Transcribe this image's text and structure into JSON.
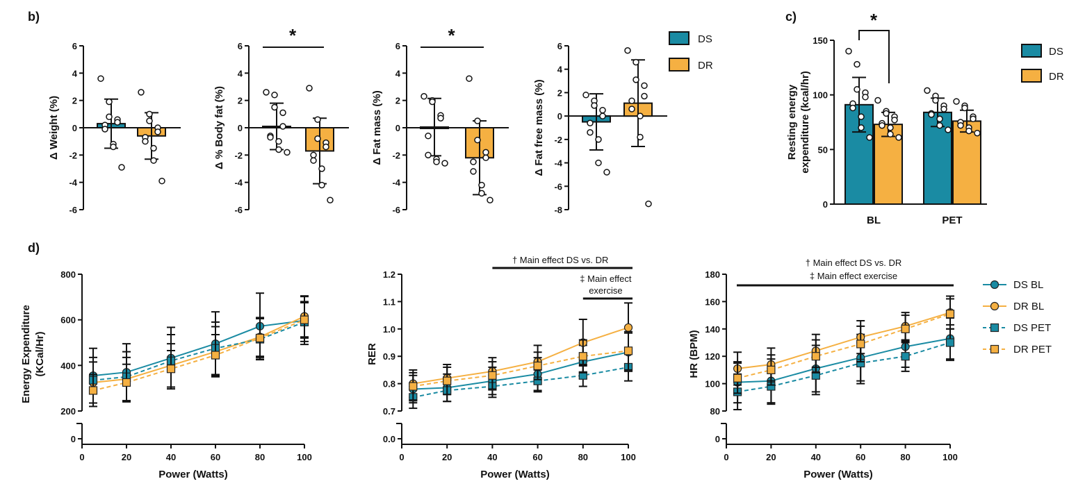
{
  "panels": {
    "b": "b)",
    "c": "c)",
    "d": "d)"
  },
  "colors": {
    "DS": "#1a8ba3",
    "DR": "#f5b042",
    "err": "#111111"
  },
  "chart_data": [
    {
      "id": "b1",
      "type": "bar",
      "title": "",
      "ylabel": "Δ Weight (%)",
      "xlabel": "",
      "ylim": [
        -6,
        6
      ],
      "yticks": [
        "6",
        "4",
        "2",
        "0",
        "-2",
        "-4",
        "-6"
      ],
      "categories": [
        "DS",
        "DR"
      ],
      "values": [
        0.3,
        -0.6
      ],
      "errors": [
        1.8,
        1.7
      ],
      "points": [
        [
          3.6,
          1.9,
          0.8,
          0.6,
          0.4,
          0.2,
          -0.1,
          -1.2,
          -1.4,
          -2.9
        ],
        [
          2.6,
          1.0,
          0.5,
          0.0,
          -0.3,
          -0.7,
          -1.0,
          -1.5,
          -2.4,
          -3.9
        ]
      ]
    },
    {
      "id": "b2",
      "type": "bar",
      "title": "",
      "ylabel": "Δ % Body fat (%)",
      "xlabel": "",
      "ylim": [
        -6,
        6
      ],
      "yticks": [
        "6",
        "4",
        "2",
        "0",
        "-2",
        "-4",
        "-6"
      ],
      "categories": [
        "DS",
        "DR"
      ],
      "values": [
        0.1,
        -1.7
      ],
      "errors": [
        1.7,
        2.4
      ],
      "points": [
        [
          2.6,
          2.4,
          1.5,
          1.1,
          0.1,
          -0.6,
          -0.7,
          -1.0,
          -1.6,
          -1.8
        ],
        [
          2.9,
          0.6,
          -0.8,
          -1.1,
          -1.4,
          -2.0,
          -2.4,
          -3.0,
          -4.2,
          -5.3
        ]
      ],
      "star": "*"
    },
    {
      "id": "b3",
      "type": "bar",
      "title": "",
      "ylabel": "Δ Fat mass (%)",
      "xlabel": "",
      "ylim": [
        -6,
        6
      ],
      "yticks": [
        "6",
        "4",
        "2",
        "0",
        "-2",
        "-4",
        "-6"
      ],
      "categories": [
        "DS",
        "DR"
      ],
      "values": [
        0.05,
        -2.2
      ],
      "errors": [
        2.1,
        2.7
      ],
      "points": [
        [
          2.3,
          2.0,
          1.9,
          0.9,
          0.7,
          -0.6,
          -2.0,
          -2.3,
          -2.5,
          -2.6
        ],
        [
          3.6,
          0.5,
          -0.9,
          -1.8,
          -2.2,
          -2.5,
          -3.2,
          -4.2,
          -4.8,
          -5.3
        ]
      ],
      "star": "*"
    },
    {
      "id": "b4",
      "type": "bar",
      "title": "",
      "ylabel": "Δ Fat free mass (%)",
      "xlabel": "",
      "ylim": [
        -8,
        6
      ],
      "yticks": [
        "6",
        "4",
        "2",
        "0",
        "-2",
        "-4",
        "-6",
        "-8"
      ],
      "categories": [
        "DS",
        "DR"
      ],
      "values": [
        -0.5,
        1.1
      ],
      "errors": [
        2.4,
        3.7
      ],
      "points": [
        [
          1.8,
          1.3,
          0.9,
          0.5,
          0.0,
          -0.6,
          -1.4,
          -2.0,
          -4.0,
          -4.8
        ],
        [
          5.6,
          4.6,
          3.1,
          2.6,
          1.7,
          1.3,
          0.6,
          0.0,
          -1.8,
          -7.5
        ]
      ]
    },
    {
      "id": "c",
      "type": "bar",
      "title": "",
      "ylabel": "Resting energy expenditure (kcal/hr)",
      "xlabel": "",
      "ylim": [
        0,
        150
      ],
      "yticks": [
        "150",
        "100",
        "50",
        "0"
      ],
      "groups": [
        "BL",
        "PET"
      ],
      "series": [
        {
          "name": "DS",
          "values": [
            91,
            84
          ],
          "errors": [
            25,
            13
          ],
          "points": [
            [
              140,
              128,
              105,
              102,
              98,
              92,
              88,
              80,
              70,
              61
            ],
            [
              104,
              99,
              95,
              90,
              87,
              83,
              82,
              78,
              72,
              68
            ]
          ]
        },
        {
          "name": "DR",
          "values": [
            73,
            76
          ],
          "errors": [
            11,
            10
          ],
          "points": [
            [
              95,
              85,
              83,
              80,
              77,
              74,
              72,
              70,
              64,
              61
            ],
            [
              94,
              90,
              88,
              80,
              78,
              75,
              72,
              70,
              67,
              65
            ]
          ]
        }
      ],
      "star": "*"
    },
    {
      "id": "d1",
      "type": "line",
      "title": "",
      "xlabel": "Power (Watts)",
      "ylabel": "Energy Expenditure (KCal/Hr)",
      "x": [
        5,
        20,
        40,
        60,
        80,
        100
      ],
      "xlim": [
        0,
        100
      ],
      "xticks": [
        "0",
        "20",
        "40",
        "60",
        "80",
        "100"
      ],
      "ylim": [
        200,
        800
      ],
      "yticks": [
        "800",
        "600",
        "400",
        "200"
      ],
      "ybreak": "0",
      "series": [
        {
          "name": "DS BL",
          "group": "DS",
          "marker": "circle",
          "dashed": false,
          "values": [
            355,
            370,
            432,
            495,
            572,
            597
          ],
          "errors": [
            120,
            125,
            135,
            140,
            145,
            105
          ]
        },
        {
          "name": "DR BL",
          "group": "DR",
          "marker": "circle",
          "dashed": false,
          "values": [
            325,
            340,
            400,
            460,
            525,
            615
          ],
          "errors": [
            90,
            95,
            95,
            110,
            85,
            90
          ]
        },
        {
          "name": "DS PET",
          "group": "DS",
          "marker": "square",
          "dashed": true,
          "values": [
            335,
            350,
            420,
            475,
            515,
            590
          ],
          "errors": [
            100,
            110,
            115,
            115,
            90,
            85
          ]
        },
        {
          "name": "DR PET",
          "group": "DR",
          "marker": "square",
          "dashed": true,
          "values": [
            290,
            325,
            385,
            445,
            520,
            600
          ],
          "errors": [
            70,
            80,
            80,
            90,
            85,
            80
          ]
        }
      ]
    },
    {
      "id": "d2",
      "type": "line",
      "title": "",
      "xlabel": "Power (Watts)",
      "ylabel": "RER",
      "x": [
        5,
        20,
        40,
        60,
        80,
        100
      ],
      "xlim": [
        0,
        100
      ],
      "xticks": [
        "0",
        "20",
        "40",
        "60",
        "80",
        "100"
      ],
      "ylim": [
        0.7,
        1.2
      ],
      "yticks": [
        "1.2",
        "1.1",
        "1.0",
        "0.9",
        "0.8",
        "0.7"
      ],
      "ybreak": "0.0",
      "series": [
        {
          "name": "DS BL",
          "group": "DS",
          "marker": "circle",
          "dashed": false,
          "values": [
            0.78,
            0.785,
            0.81,
            0.835,
            0.88,
            0.915
          ],
          "errors": [
            0.05,
            0.05,
            0.05,
            0.06,
            0.06,
            0.07
          ]
        },
        {
          "name": "DR BL",
          "group": "DR",
          "marker": "circle",
          "dashed": false,
          "values": [
            0.8,
            0.82,
            0.845,
            0.88,
            0.95,
            1.005
          ],
          "errors": [
            0.05,
            0.05,
            0.05,
            0.06,
            0.085,
            0.09
          ]
        },
        {
          "name": "DS PET",
          "group": "DS",
          "marker": "square",
          "dashed": true,
          "values": [
            0.75,
            0.775,
            0.79,
            0.81,
            0.83,
            0.86
          ],
          "errors": [
            0.04,
            0.04,
            0.04,
            0.04,
            0.04,
            0.05
          ]
        },
        {
          "name": "DR PET",
          "group": "DR",
          "marker": "square",
          "dashed": true,
          "values": [
            0.79,
            0.81,
            0.83,
            0.865,
            0.9,
            0.92
          ],
          "errors": [
            0.05,
            0.05,
            0.05,
            0.05,
            0.06,
            0.07
          ]
        }
      ],
      "annotations": [
        {
          "lines": [
            "† Main effect DS vs. DR"
          ],
          "from": 40,
          "to": 100
        },
        {
          "lines": [
            "‡ Main effect",
            "exercise"
          ],
          "from": 80,
          "to": 100
        }
      ]
    },
    {
      "id": "d3",
      "type": "line",
      "title": "",
      "xlabel": "Power (Watts)",
      "ylabel": "HR (BPM)",
      "x": [
        5,
        20,
        40,
        60,
        80,
        100
      ],
      "xlim": [
        0,
        100
      ],
      "xticks": [
        "0",
        "20",
        "40",
        "60",
        "80",
        "100"
      ],
      "ylim": [
        80,
        180
      ],
      "yticks": [
        "180",
        "160",
        "140",
        "120",
        "100",
        "80"
      ],
      "ybreak": "0",
      "series": [
        {
          "name": "DS BL",
          "group": "DS",
          "marker": "circle",
          "dashed": false,
          "values": [
            101,
            102,
            111,
            119,
            127,
            133
          ],
          "errors": [
            15,
            16,
            17,
            17,
            15,
            15
          ]
        },
        {
          "name": "DR BL",
          "group": "DR",
          "marker": "circle",
          "dashed": false,
          "values": [
            111,
            114,
            124,
            134,
            142,
            152
          ],
          "errors": [
            12,
            12,
            12,
            12,
            10,
            12
          ]
        },
        {
          "name": "DS PET",
          "group": "DS",
          "marker": "square",
          "dashed": true,
          "values": [
            94,
            98,
            106,
            115,
            120,
            130
          ],
          "errors": [
            13,
            13,
            14,
            15,
            11,
            13
          ]
        },
        {
          "name": "DR PET",
          "group": "DR",
          "marker": "square",
          "dashed": true,
          "values": [
            104,
            110,
            120,
            129,
            140,
            151
          ],
          "errors": [
            11,
            11,
            12,
            13,
            10,
            11
          ]
        }
      ],
      "annotations": [
        {
          "lines": [
            "† Main effect DS vs. DR",
            "‡ Main effect exercise"
          ],
          "from": 5,
          "to": 100
        }
      ]
    }
  ],
  "legends": {
    "b": [
      {
        "label": "DS",
        "group": "DS"
      },
      {
        "label": "DR",
        "group": "DR"
      }
    ],
    "c": [
      {
        "label": "DS",
        "group": "DS"
      },
      {
        "label": "DR",
        "group": "DR"
      }
    ],
    "d": [
      {
        "label": "DS BL",
        "group": "DS",
        "marker": "circle",
        "dashed": false
      },
      {
        "label": "DR BL",
        "group": "DR",
        "marker": "circle",
        "dashed": false
      },
      {
        "label": "DS PET",
        "group": "DS",
        "marker": "square",
        "dashed": true
      },
      {
        "label": "DR PET",
        "group": "DR",
        "marker": "square",
        "dashed": true
      }
    ]
  }
}
